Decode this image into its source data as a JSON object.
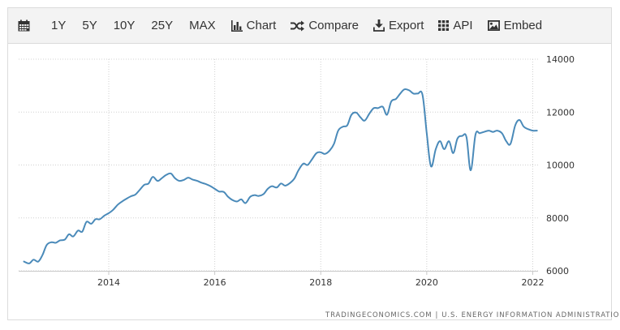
{
  "toolbar": {
    "calendar_icon": "calendar-icon",
    "ranges": [
      "1Y",
      "5Y",
      "10Y",
      "25Y",
      "MAX"
    ],
    "chart_label": "Chart",
    "compare_label": "Compare",
    "export_label": "Export",
    "api_label": "API",
    "embed_label": "Embed"
  },
  "footer": {
    "source_left": "TRADINGECONOMICS.COM",
    "separator": "|",
    "source_right": "U.S. ENERGY INFORMATION ADMINISTRATION"
  },
  "colors": {
    "line": "#4a8ab9",
    "toolbar_bg": "#f3f3f3"
  },
  "chart_data": {
    "type": "line",
    "title": "",
    "xlabel": "",
    "ylabel": "",
    "ylim": [
      6000,
      14000
    ],
    "xlim": [
      2012.3,
      2022.1
    ],
    "yticks": [
      6000,
      8000,
      10000,
      12000,
      14000
    ],
    "xticks": [
      2014,
      2016,
      2018,
      2020,
      2022
    ],
    "x_tick_labels": [
      "2014",
      "2016",
      "2018",
      "2020",
      "2022"
    ],
    "y_tick_labels": [
      "6000",
      "8000",
      "10000",
      "12000",
      "14000"
    ],
    "y_axis_side": "right",
    "grid": true,
    "series": [
      {
        "x": [
          2012.4,
          2012.5,
          2012.58,
          2012.67,
          2012.75,
          2012.83,
          2012.92,
          2013.0,
          2013.08,
          2013.17,
          2013.25,
          2013.33,
          2013.42,
          2013.5,
          2013.58,
          2013.67,
          2013.75,
          2013.83,
          2013.92,
          2014.0,
          2014.08,
          2014.17,
          2014.25,
          2014.33,
          2014.42,
          2014.5,
          2014.58,
          2014.67,
          2014.75,
          2014.83,
          2014.92,
          2015.0,
          2015.08,
          2015.17,
          2015.25,
          2015.33,
          2015.42,
          2015.5,
          2015.58,
          2015.67,
          2015.75,
          2015.83,
          2015.92,
          2016.0,
          2016.08,
          2016.17,
          2016.25,
          2016.33,
          2016.42,
          2016.5,
          2016.58,
          2016.67,
          2016.75,
          2016.83,
          2016.92,
          2017.0,
          2017.08,
          2017.17,
          2017.25,
          2017.33,
          2017.42,
          2017.5,
          2017.58,
          2017.67,
          2017.75,
          2017.83,
          2017.92,
          2018.0,
          2018.08,
          2018.17,
          2018.25,
          2018.33,
          2018.42,
          2018.5,
          2018.58,
          2018.67,
          2018.75,
          2018.83,
          2018.92,
          2019.0,
          2019.08,
          2019.17,
          2019.25,
          2019.33,
          2019.42,
          2019.5,
          2019.58,
          2019.67,
          2019.75,
          2019.83,
          2019.92,
          2020.0,
          2020.08,
          2020.17,
          2020.25,
          2020.33,
          2020.42,
          2020.5,
          2020.58,
          2020.67,
          2020.75,
          2020.83,
          2020.92,
          2021.0,
          2021.08,
          2021.17,
          2021.25,
          2021.33,
          2021.42,
          2021.5,
          2021.58,
          2021.67,
          2021.75,
          2021.83,
          2021.92,
          2022.0,
          2022.08
        ],
        "values": [
          6350,
          6280,
          6420,
          6350,
          6600,
          6980,
          7080,
          7060,
          7150,
          7180,
          7380,
          7300,
          7520,
          7480,
          7850,
          7780,
          7950,
          7950,
          8090,
          8180,
          8300,
          8500,
          8620,
          8720,
          8820,
          8880,
          9050,
          9250,
          9300,
          9550,
          9400,
          9500,
          9620,
          9680,
          9500,
          9400,
          9440,
          9520,
          9450,
          9400,
          9330,
          9280,
          9200,
          9100,
          9000,
          8980,
          8800,
          8680,
          8620,
          8700,
          8560,
          8800,
          8860,
          8830,
          8900,
          9100,
          9200,
          9150,
          9300,
          9220,
          9320,
          9480,
          9800,
          10050,
          10000,
          10200,
          10450,
          10480,
          10420,
          10550,
          10800,
          11300,
          11450,
          11500,
          11900,
          11980,
          11800,
          11680,
          11950,
          12150,
          12150,
          12200,
          11900,
          12400,
          12500,
          12700,
          12860,
          12820,
          12700,
          12700,
          12650,
          11200,
          9950,
          10600,
          10900,
          10600,
          10900,
          10450,
          11000,
          11100,
          11050,
          9800,
          11150,
          11200,
          11250,
          11300,
          11250,
          11300,
          11200,
          10900,
          10800,
          11500,
          11700,
          11450,
          11350,
          11300,
          11300
        ]
      }
    ]
  }
}
